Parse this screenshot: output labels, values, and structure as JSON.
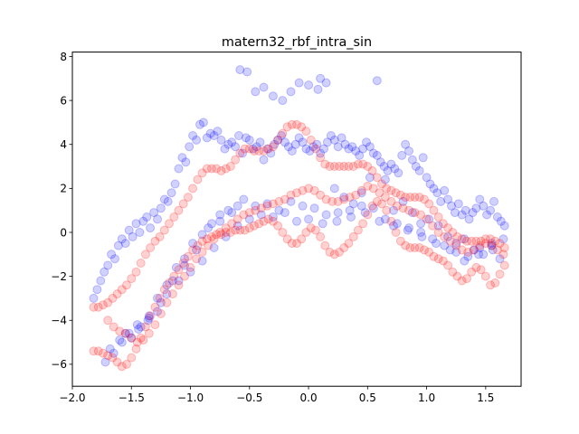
{
  "chart_data": {
    "type": "scatter",
    "title": "matern32_rbf_intra_sin",
    "xlabel": "",
    "ylabel": "",
    "xlim": [
      -2.0,
      1.8
    ],
    "ylim": [
      -7.0,
      8.2
    ],
    "xticks": [
      -2.0,
      -1.5,
      -1.0,
      -0.5,
      0.0,
      0.5,
      1.0,
      1.5
    ],
    "xtick_labels": [
      "−2.0",
      "−1.5",
      "−1.0",
      "−0.5",
      "0.0",
      "0.5",
      "1.0",
      "1.5"
    ],
    "yticks": [
      -6,
      -4,
      -2,
      0,
      2,
      4,
      6,
      8
    ],
    "ytick_labels": [
      "−6",
      "−4",
      "−2",
      "0",
      "2",
      "4",
      "6",
      "8"
    ],
    "grid": false,
    "marker_alpha": 0.18,
    "series": [
      {
        "color": "#0000ff",
        "x": [
          -1.82,
          -1.79,
          -1.76,
          -1.73,
          -1.7,
          -1.67,
          -1.64,
          -1.61,
          -1.58,
          -1.55,
          -1.52,
          -1.49,
          -1.46,
          -1.43,
          -1.4,
          -1.37,
          -1.34,
          -1.31,
          -1.28,
          -1.25,
          -1.22,
          -1.19,
          -1.16,
          -1.13,
          -1.1,
          -1.07,
          -1.04,
          -1.01,
          -0.98,
          -0.95,
          -0.92,
          -0.89,
          -0.86,
          -0.83,
          -0.8,
          -0.77,
          -0.74,
          -0.71,
          -0.68,
          -0.65,
          -0.62,
          -0.59,
          -0.56,
          -0.53,
          -0.5,
          -0.47,
          -0.44,
          -0.41,
          -0.38,
          -0.35,
          -0.32,
          -0.29,
          -0.26,
          -0.23,
          -0.2,
          -0.17,
          -0.14,
          -0.11,
          -0.08,
          -0.05,
          -0.02,
          0.01,
          0.04,
          0.07,
          0.1,
          0.13,
          0.16,
          0.19,
          0.22,
          0.25,
          0.28,
          0.31,
          0.34,
          0.37,
          0.4,
          0.43,
          0.46,
          0.49,
          0.52,
          0.55,
          0.58,
          0.61,
          0.64,
          0.67,
          0.7,
          0.73,
          0.76,
          0.79,
          0.82,
          0.85,
          0.88,
          0.91,
          0.94,
          0.97,
          1.0,
          1.03,
          1.06,
          1.09,
          1.12,
          1.15,
          1.18,
          1.21,
          1.24,
          1.27,
          1.3,
          1.33,
          1.36,
          1.39,
          1.42,
          1.45,
          1.48,
          1.51,
          1.54,
          1.57,
          1.6,
          1.63,
          1.66,
          -1.72,
          -1.65,
          -1.58,
          -1.5,
          -1.42,
          -1.35,
          -1.28,
          -1.2,
          -1.12,
          -1.05,
          -0.98,
          -0.9,
          -0.82,
          -0.75,
          -0.68,
          -0.6,
          -0.58,
          -0.52,
          -0.45,
          -0.38,
          -0.3,
          -0.22,
          -0.15,
          -0.08,
          0.0,
          0.08,
          0.1,
          0.15,
          0.22,
          0.3,
          0.38,
          0.45,
          0.52,
          0.58,
          0.65,
          0.72,
          0.8,
          0.88,
          0.95,
          1.02,
          1.1,
          1.18,
          1.25,
          1.32,
          1.4,
          1.48,
          1.55,
          1.62,
          -1.55,
          -1.45,
          -1.35,
          -1.25,
          -1.15,
          -1.05,
          -0.95,
          -0.85,
          -0.75,
          -0.65,
          -0.55,
          -0.45,
          -0.35,
          -0.25,
          -0.15,
          -0.05,
          0.05,
          0.15,
          0.25,
          0.35,
          0.45,
          0.55,
          0.65,
          0.75,
          0.85,
          0.95,
          1.05,
          1.15,
          1.25,
          1.35,
          1.45,
          1.55,
          1.65,
          -1.68,
          -1.6,
          -1.52,
          -1.44,
          -1.36,
          -1.28,
          -1.2,
          -1.1,
          -1.0,
          -0.9,
          -0.8,
          -0.7,
          -0.6,
          -0.5,
          -0.4,
          -0.3,
          -0.2,
          -0.1,
          0.0,
          0.12,
          0.24,
          0.36,
          0.48,
          0.6,
          0.72,
          0.84,
          0.96,
          1.08,
          1.2,
          1.32,
          1.44,
          1.56
        ],
        "y": [
          -3.0,
          -2.6,
          -2.2,
          -1.8,
          -1.5,
          -1.0,
          -1.2,
          -0.6,
          -0.3,
          -0.5,
          0.1,
          -0.2,
          0.4,
          0.0,
          0.5,
          0.7,
          0.2,
          0.9,
          0.6,
          1.1,
          1.5,
          1.4,
          1.8,
          2.2,
          2.9,
          3.4,
          3.2,
          3.9,
          4.4,
          4.2,
          4.9,
          5.0,
          4.3,
          4.5,
          4.4,
          4.6,
          4.2,
          3.8,
          4.0,
          4.1,
          3.9,
          4.4,
          3.6,
          4.3,
          4.2,
          3.8,
          3.9,
          4.1,
          3.3,
          3.8,
          3.6,
          4.0,
          4.2,
          4.4,
          4.1,
          3.9,
          3.7,
          4.0,
          4.3,
          4.1,
          3.8,
          3.7,
          3.9,
          4.0,
          3.6,
          3.8,
          4.1,
          4.4,
          4.2,
          3.9,
          4.3,
          4.0,
          3.8,
          3.9,
          3.7,
          3.5,
          3.8,
          4.1,
          3.9,
          3.6,
          3.5,
          3.2,
          3.0,
          2.8,
          3.1,
          2.9,
          2.7,
          3.5,
          4.0,
          3.7,
          3.3,
          3.0,
          2.8,
          3.4,
          2.5,
          2.2,
          2.0,
          1.8,
          1.4,
          1.9,
          1.5,
          1.2,
          0.9,
          1.3,
          0.8,
          1.0,
          0.6,
          0.9,
          1.1,
          1.5,
          1.2,
          0.8,
          1.0,
          1.4,
          0.7,
          0.5,
          0.3,
          -5.9,
          -5.5,
          -5.0,
          -4.8,
          -4.3,
          -3.8,
          -3.0,
          -2.4,
          -1.6,
          -1.2,
          -0.5,
          -0.1,
          0.4,
          0.8,
          1.0,
          1.2,
          7.4,
          7.3,
          6.4,
          6.6,
          6.2,
          6.0,
          6.4,
          6.8,
          6.7,
          6.5,
          7.0,
          6.8,
          2.0,
          1.6,
          1.3,
          1.8,
          2.5,
          6.9,
          2.4,
          1.0,
          1.4,
          0.9,
          0.4,
          0.6,
          0.3,
          -0.2,
          -0.5,
          -0.3,
          -0.8,
          -1.0,
          -0.6,
          -1.2,
          -4.6,
          -4.2,
          -3.9,
          -3.2,
          -2.2,
          -1.5,
          -0.8,
          0.2,
          0.5,
          0.9,
          1.5,
          1.2,
          1.3,
          1.0,
          1.4,
          1.2,
          1.1,
          0.8,
          0.9,
          1.0,
          1.2,
          1.1,
          0.6,
          0.4,
          0.2,
          0.0,
          -0.3,
          -0.6,
          -0.9,
          -1.1,
          -0.7,
          -0.5,
          -0.3,
          -5.3,
          -4.9,
          -4.6,
          -4.4,
          -4.0,
          -3.6,
          -2.8,
          -2.2,
          -1.8,
          -1.3,
          -0.7,
          -0.2,
          0.3,
          0.6,
          0.8,
          0.7,
          0.9,
          0.5,
          0.6,
          0.4,
          0.5,
          0.7,
          0.9,
          0.5,
          0.3,
          0.1,
          -0.2,
          -0.5,
          -0.8,
          -1.3,
          -1.0,
          -0.8
        ]
      },
      {
        "color": "#ff0000",
        "x": [
          -1.82,
          -1.78,
          -1.74,
          -1.7,
          -1.66,
          -1.62,
          -1.58,
          -1.54,
          -1.5,
          -1.46,
          -1.42,
          -1.38,
          -1.34,
          -1.3,
          -1.26,
          -1.22,
          -1.18,
          -1.14,
          -1.1,
          -1.06,
          -1.02,
          -0.98,
          -0.94,
          -0.9,
          -0.86,
          -0.82,
          -0.78,
          -0.74,
          -0.7,
          -0.66,
          -0.62,
          -0.58,
          -0.54,
          -0.5,
          -0.46,
          -0.42,
          -0.38,
          -0.34,
          -0.3,
          -0.26,
          -0.22,
          -0.18,
          -0.14,
          -0.1,
          -0.06,
          -0.02,
          0.02,
          0.06,
          0.1,
          0.14,
          0.18,
          0.22,
          0.26,
          0.3,
          0.34,
          0.38,
          0.42,
          0.46,
          0.5,
          0.54,
          0.58,
          0.62,
          0.66,
          0.7,
          0.74,
          0.78,
          0.82,
          0.86,
          0.9,
          0.94,
          0.98,
          1.02,
          1.06,
          1.1,
          1.14,
          1.18,
          1.22,
          1.26,
          1.3,
          1.34,
          1.38,
          1.42,
          1.46,
          1.5,
          1.54,
          1.58,
          1.62,
          1.66,
          -1.82,
          -1.78,
          -1.74,
          -1.7,
          -1.66,
          -1.62,
          -1.58,
          -1.54,
          -1.5,
          -1.46,
          -1.42,
          -1.38,
          -1.34,
          -1.3,
          -1.26,
          -1.22,
          -1.18,
          -1.14,
          -1.1,
          -1.06,
          -1.02,
          -0.98,
          -0.94,
          -0.9,
          -0.86,
          -0.82,
          -0.78,
          -0.74,
          -0.7,
          -0.66,
          -0.62,
          -0.58,
          -0.54,
          -0.5,
          -0.46,
          -0.42,
          -0.38,
          -0.34,
          -0.3,
          -0.26,
          -0.22,
          -0.18,
          -0.14,
          -0.1,
          -0.06,
          -0.02,
          0.02,
          0.06,
          0.1,
          0.14,
          0.18,
          0.22,
          0.26,
          0.3,
          0.34,
          0.38,
          0.42,
          0.46,
          0.5,
          0.54,
          0.58,
          0.62,
          0.66,
          0.7,
          0.74,
          0.78,
          0.82,
          0.86,
          0.9,
          0.94,
          0.98,
          1.02,
          1.06,
          1.1,
          1.14,
          1.18,
          1.22,
          1.26,
          1.3,
          1.34,
          1.38,
          1.42,
          1.46,
          1.5,
          1.54,
          1.58,
          1.62,
          1.66,
          -1.7,
          -1.65,
          -1.6,
          -1.55,
          -1.5,
          -1.45,
          -1.4,
          -1.35,
          -1.3,
          -1.25,
          -1.2,
          -1.15,
          -1.1,
          -1.05,
          -1.0,
          -0.95,
          -0.9,
          -0.85,
          -0.8,
          -0.75,
          -0.7,
          -0.65,
          -0.6,
          -0.55,
          -0.5,
          -0.45,
          -0.4,
          -0.35,
          -0.3,
          -0.25,
          -0.2,
          -0.15,
          -0.1,
          -0.05,
          0.0,
          0.05,
          0.1,
          0.15,
          0.2,
          0.25,
          0.3,
          0.35,
          0.4,
          0.45,
          0.5,
          0.55,
          0.6,
          0.65,
          0.7,
          0.75,
          0.8,
          0.85,
          0.9,
          0.95,
          1.0,
          1.05,
          1.1,
          1.15,
          1.2,
          1.25,
          1.3,
          1.35,
          1.4,
          1.45,
          1.5,
          1.55,
          1.6,
          1.65
        ],
        "y": [
          -3.4,
          -3.4,
          -3.3,
          -3.2,
          -3.0,
          -2.8,
          -2.6,
          -2.4,
          -2.1,
          -1.8,
          -1.4,
          -1.0,
          -0.7,
          -0.4,
          -0.2,
          0.1,
          0.4,
          0.7,
          1.0,
          1.3,
          1.6,
          2.0,
          2.4,
          2.7,
          2.9,
          2.9,
          2.9,
          2.8,
          2.9,
          3.0,
          3.3,
          3.6,
          3.8,
          3.8,
          3.7,
          3.7,
          3.7,
          3.8,
          3.9,
          4.2,
          4.5,
          4.8,
          4.9,
          4.9,
          4.8,
          4.6,
          4.2,
          3.8,
          3.4,
          3.1,
          3.0,
          3.0,
          3.0,
          3.0,
          3.0,
          3.0,
          3.1,
          3.1,
          3.0,
          2.8,
          2.5,
          2.2,
          2.0,
          1.9,
          1.8,
          1.7,
          1.6,
          1.6,
          1.6,
          1.6,
          1.5,
          1.3,
          1.0,
          0.7,
          0.4,
          0.2,
          0.0,
          -0.2,
          -0.3,
          -0.4,
          -0.4,
          -0.4,
          -0.4,
          -0.3,
          -0.3,
          -0.4,
          -0.5,
          -0.7,
          -5.4,
          -5.4,
          -5.5,
          -5.6,
          -5.7,
          -5.9,
          -6.1,
          -6.0,
          -5.7,
          -5.3,
          -4.8,
          -4.3,
          -3.8,
          -3.4,
          -3.0,
          -2.6,
          -2.3,
          -2.0,
          -1.7,
          -1.4,
          -1.1,
          -0.8,
          -0.6,
          -0.4,
          -0.3,
          -0.2,
          -0.1,
          -0.1,
          0.0,
          0.0,
          0.1,
          0.1,
          0.1,
          0.2,
          0.3,
          0.4,
          0.5,
          0.6,
          0.5,
          0.3,
          0.0,
          -0.3,
          -0.5,
          -0.5,
          -0.3,
          0.0,
          0.2,
          0.1,
          -0.2,
          -0.6,
          -0.9,
          -1.0,
          -0.9,
          -0.7,
          -0.5,
          -0.2,
          0.1,
          0.4,
          0.8,
          1.2,
          1.4,
          1.3,
          1.0,
          0.5,
          0.0,
          -0.4,
          -0.6,
          -0.7,
          -0.7,
          -0.7,
          -0.8,
          -0.9,
          -1.1,
          -1.2,
          -1.3,
          -1.5,
          -1.8,
          -2.0,
          -2.2,
          -2.1,
          -1.8,
          -1.6,
          -1.7,
          -2.0,
          -2.4,
          -2.3,
          -1.9,
          -1.5,
          -4.0,
          -4.3,
          -4.5,
          -4.6,
          -4.8,
          -5.0,
          -4.9,
          -4.6,
          -4.2,
          -3.7,
          -3.2,
          -2.8,
          -2.4,
          -2.0,
          -1.6,
          -1.2,
          -0.9,
          -0.6,
          -0.3,
          0.0,
          0.2,
          0.4,
          0.6,
          0.8,
          0.9,
          1.0,
          1.1,
          1.2,
          1.3,
          1.4,
          1.5,
          1.7,
          1.8,
          1.9,
          2.0,
          1.9,
          1.7,
          1.5,
          1.4,
          1.4,
          1.5,
          1.6,
          1.7,
          1.9,
          2.1,
          2.0,
          1.8,
          1.6,
          1.4,
          1.2,
          1.1,
          1.0,
          0.9,
          0.8,
          0.6,
          0.3,
          0.0,
          -0.2,
          -0.4,
          -0.6,
          -0.8,
          -0.9,
          -0.8,
          -0.6,
          -0.5,
          -0.6,
          -0.8,
          -1.0
        ]
      }
    ]
  }
}
